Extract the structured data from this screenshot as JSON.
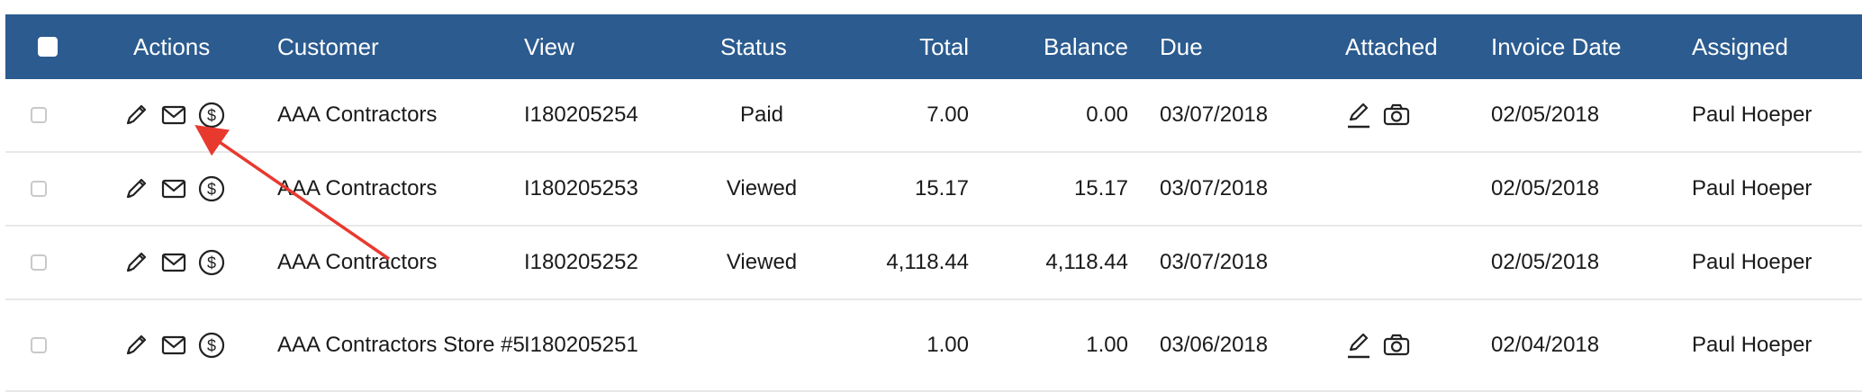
{
  "colors": {
    "header_bg": "#2b5b8f",
    "link": "#1f4f7d",
    "status_paid": "#3aa66a",
    "annotation_arrow": "#e8392f"
  },
  "header": {
    "actions": "Actions",
    "customer": "Customer",
    "view": "View",
    "status": "Status",
    "total": "Total",
    "balance": "Balance",
    "due": "Due",
    "attached": "Attached",
    "invoice_date": "Invoice Date",
    "assigned": "Assigned"
  },
  "rows": [
    {
      "customer": "AAA Contractors",
      "view": "I180205254",
      "status": "Paid",
      "total": "7.00",
      "balance": "0.00",
      "due": "03/07/2018",
      "attached": true,
      "invoice_date": "02/05/2018",
      "assigned": "Paul Hoeper"
    },
    {
      "customer": "AAA Contractors",
      "view": "I180205253",
      "status": "Viewed",
      "total": "15.17",
      "balance": "15.17",
      "due": "03/07/2018",
      "attached": false,
      "invoice_date": "02/05/2018",
      "assigned": "Paul Hoeper"
    },
    {
      "customer": "AAA Contractors",
      "view": "I180205252",
      "status": "Viewed",
      "total": "4,118.44",
      "balance": "4,118.44",
      "due": "03/07/2018",
      "attached": false,
      "invoice_date": "02/05/2018",
      "assigned": "Paul Hoeper"
    },
    {
      "customer": "AAA Contractors Store #5",
      "view": "I180205251",
      "status": "",
      "total": "1.00",
      "balance": "1.00",
      "due": "03/06/2018",
      "attached": true,
      "invoice_date": "02/04/2018",
      "assigned": "Paul Hoeper"
    }
  ],
  "icons": {
    "edit": "pencil-icon",
    "email": "envelope-icon",
    "payment": "dollar-circle-icon",
    "attach_edit": "pencil-underline-icon",
    "attach_photo": "camera-icon"
  }
}
